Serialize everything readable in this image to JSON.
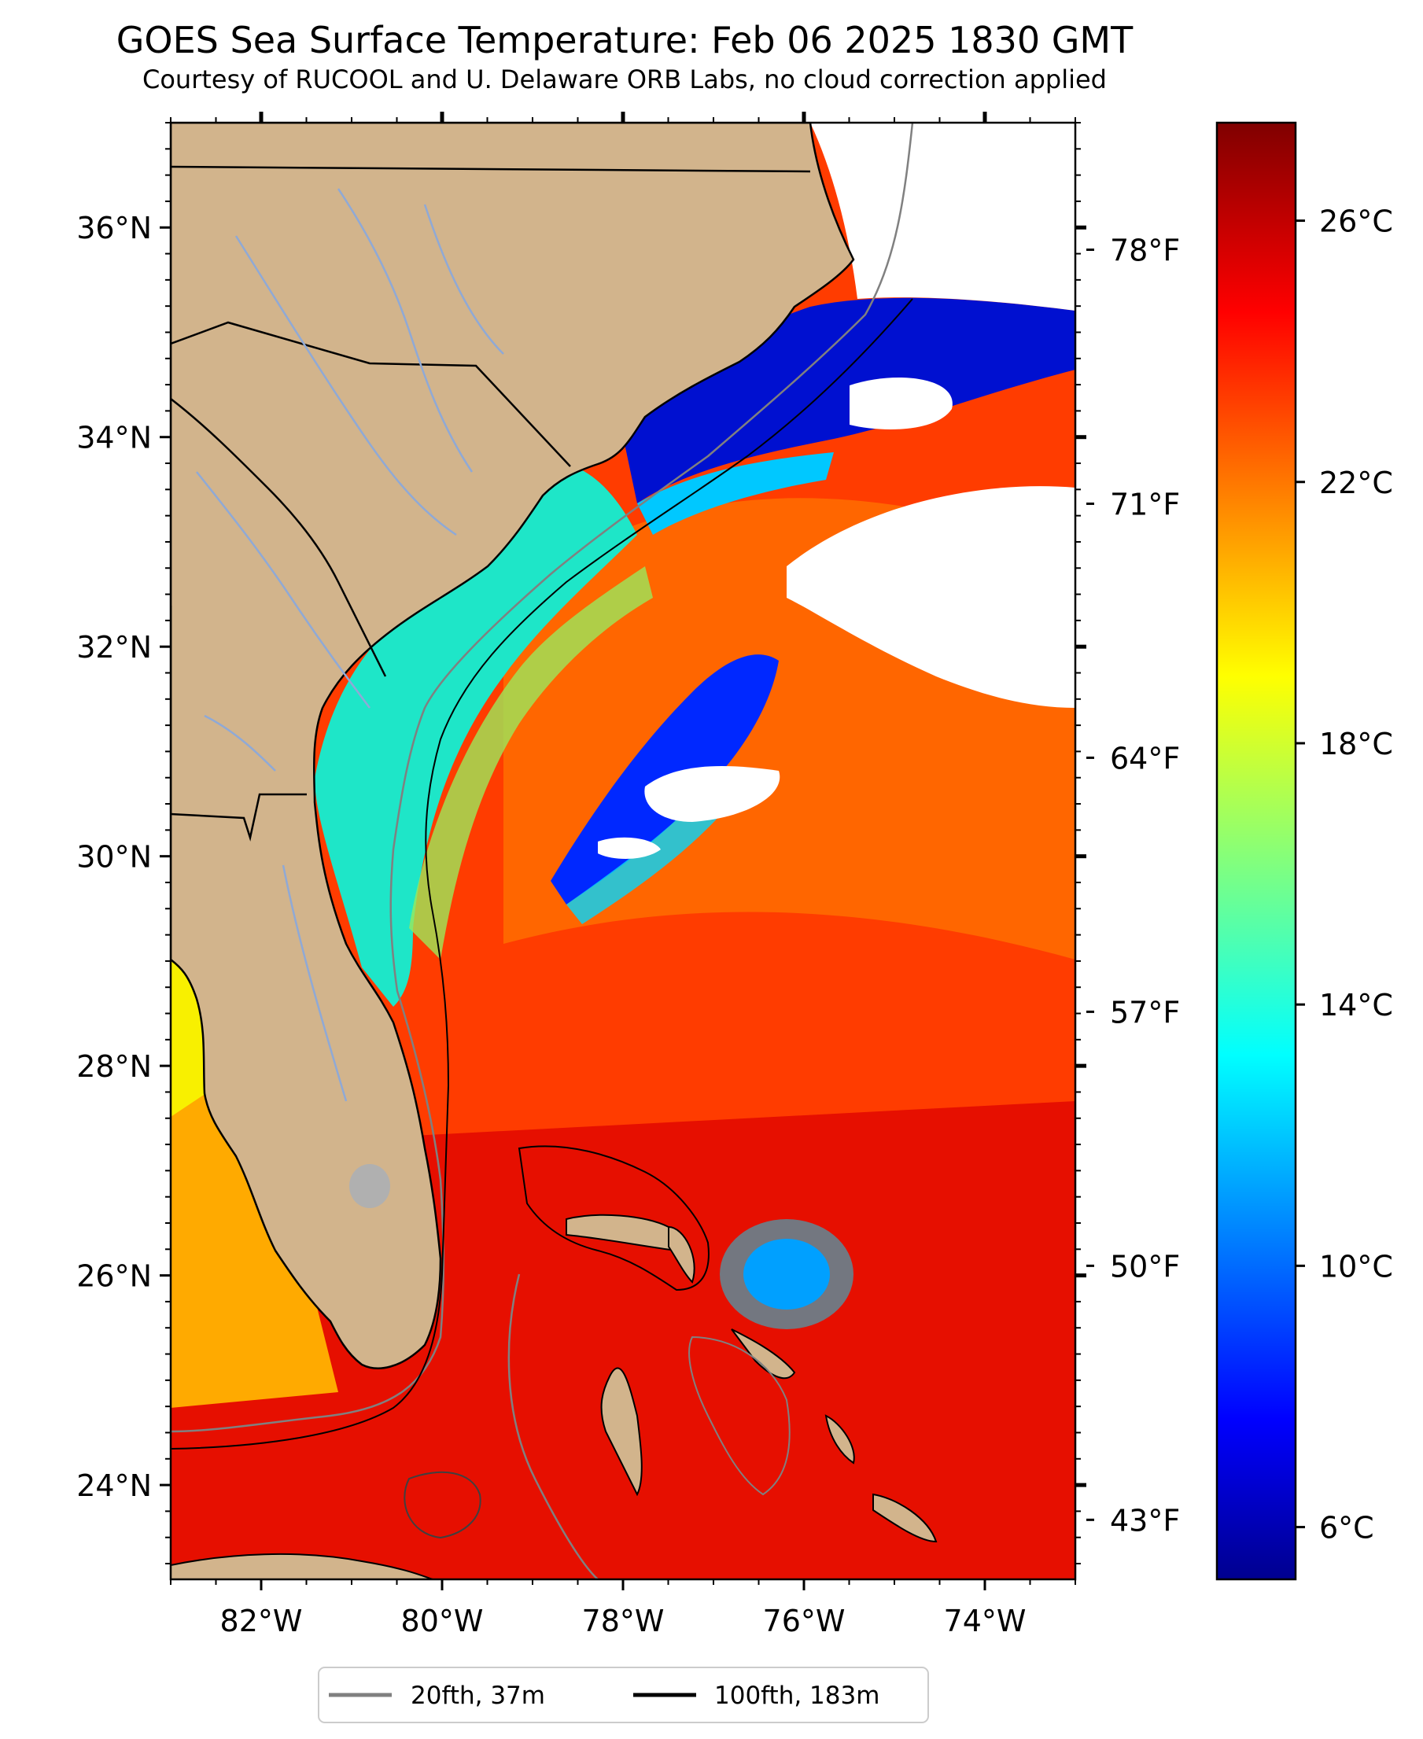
{
  "title": "GOES Sea Surface Temperature: Feb 06 2025 1830 GMT",
  "subtitle": "Courtesy of RUCOOL and U. Delaware ORB Labs, no cloud correction applied",
  "map": {
    "lon_range": [
      -83.0,
      -73.0
    ],
    "lat_range": [
      23.1,
      37.0
    ],
    "lon_ticks": [
      {
        "value": -82,
        "label": "82°W"
      },
      {
        "value": -80,
        "label": "80°W"
      },
      {
        "value": -78,
        "label": "78°W"
      },
      {
        "value": -76,
        "label": "76°W"
      },
      {
        "value": -74,
        "label": "74°W"
      }
    ],
    "lat_ticks": [
      {
        "value": 24,
        "label": "24°N"
      },
      {
        "value": 26,
        "label": "26°N"
      },
      {
        "value": 28,
        "label": "28°N"
      },
      {
        "value": 30,
        "label": "30°N"
      },
      {
        "value": 32,
        "label": "32°N"
      },
      {
        "value": 34,
        "label": "34°N"
      },
      {
        "value": 36,
        "label": "36°N"
      }
    ],
    "land_color": "#d2b48c",
    "cloud_color": "#ffffff",
    "isobath_20_color": "#808080",
    "isobath_100_color": "#000000"
  },
  "colorbar": {
    "range_c": [
      5.2,
      27.5
    ],
    "colormap": "jet",
    "celsius_ticks": [
      {
        "value": 6,
        "label": "6°C"
      },
      {
        "value": 10,
        "label": "10°C"
      },
      {
        "value": 14,
        "label": "14°C"
      },
      {
        "value": 18,
        "label": "18°C"
      },
      {
        "value": 22,
        "label": "22°C"
      },
      {
        "value": 26,
        "label": "26°C"
      }
    ],
    "fahrenheit_ticks": [
      {
        "value": 43,
        "label": "43°F"
      },
      {
        "value": 50,
        "label": "50°F"
      },
      {
        "value": 57,
        "label": "57°F"
      },
      {
        "value": 64,
        "label": "64°F"
      },
      {
        "value": 71,
        "label": "71°F"
      },
      {
        "value": 78,
        "label": "78°F"
      }
    ]
  },
  "legend": [
    {
      "label": "20fth, 37m",
      "color": "#808080"
    },
    {
      "label": "100fth, 183m",
      "color": "#000000"
    }
  ]
}
